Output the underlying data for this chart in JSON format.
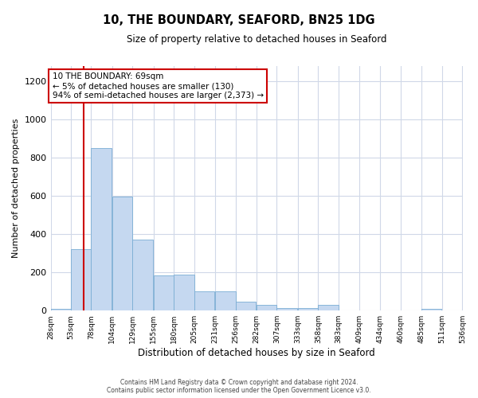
{
  "title": "10, THE BOUNDARY, SEAFORD, BN25 1DG",
  "subtitle": "Size of property relative to detached houses in Seaford",
  "xlabel": "Distribution of detached houses by size in Seaford",
  "ylabel": "Number of detached properties",
  "footer_line1": "Contains HM Land Registry data © Crown copyright and database right 2024.",
  "footer_line2": "Contains public sector information licensed under the Open Government Licence v3.0.",
  "bar_left_edges": [
    28,
    53,
    78,
    104,
    129,
    155,
    180,
    205,
    231,
    256,
    282,
    307,
    333,
    358,
    383,
    409,
    434,
    460,
    485,
    511
  ],
  "bar_widths": [
    25,
    25,
    25,
    25,
    25,
    25,
    25,
    25,
    25,
    25,
    25,
    25,
    25,
    25,
    25,
    25,
    25,
    25,
    25,
    25
  ],
  "bar_heights": [
    10,
    320,
    850,
    595,
    370,
    185,
    190,
    100,
    100,
    45,
    30,
    15,
    15,
    30,
    0,
    0,
    0,
    0,
    10,
    0
  ],
  "bar_color": "#c5d8f0",
  "bar_edgecolor": "#7aadd4",
  "tick_labels": [
    "28sqm",
    "53sqm",
    "78sqm",
    "104sqm",
    "129sqm",
    "155sqm",
    "180sqm",
    "205sqm",
    "231sqm",
    "256sqm",
    "282sqm",
    "307sqm",
    "333sqm",
    "358sqm",
    "383sqm",
    "409sqm",
    "434sqm",
    "460sqm",
    "485sqm",
    "511sqm",
    "536sqm"
  ],
  "redline_x": 69,
  "redline_color": "#cc0000",
  "ylim": [
    0,
    1280
  ],
  "yticks": [
    0,
    200,
    400,
    600,
    800,
    1000,
    1200
  ],
  "annotation_text_line1": "10 THE BOUNDARY: 69sqm",
  "annotation_text_line2": "← 5% of detached houses are smaller (130)",
  "annotation_text_line3": "94% of semi-detached houses are larger (2,373) →",
  "annotation_box_color": "#ffffff",
  "annotation_box_edgecolor": "#cc0000",
  "grid_color": "#d0d8e8",
  "background_color": "#ffffff"
}
